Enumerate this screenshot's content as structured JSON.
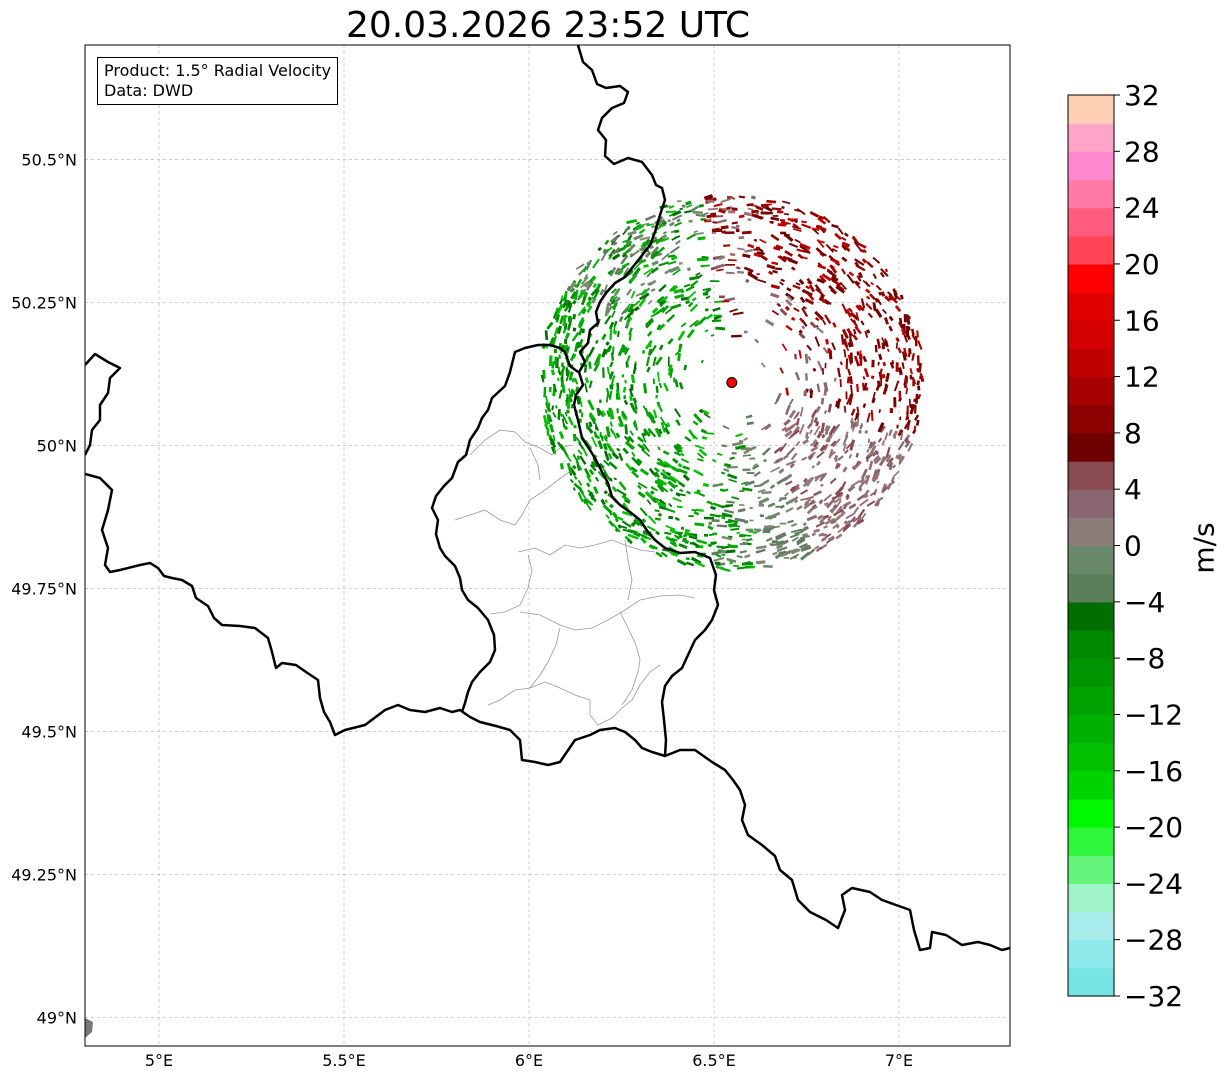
{
  "title": "20.03.2026 23:52 UTC",
  "info": {
    "product": "Product: 1.5° Radial Velocity",
    "source": "Data: DWD"
  },
  "map": {
    "lon_range": [
      4.8,
      7.3
    ],
    "lat_range": [
      48.95,
      50.7
    ],
    "lon_ticks": [
      {
        "value": 5.0,
        "label": "5°E"
      },
      {
        "value": 5.5,
        "label": "5.5°E"
      },
      {
        "value": 6.0,
        "label": "6°E"
      },
      {
        "value": 6.5,
        "label": "6.5°E"
      },
      {
        "value": 7.0,
        "label": "7°E"
      }
    ],
    "lat_ticks": [
      {
        "value": 49.0,
        "label": "49°N"
      },
      {
        "value": 49.25,
        "label": "49.25°N"
      },
      {
        "value": 49.5,
        "label": "49.5°N"
      },
      {
        "value": 49.75,
        "label": "49.75°N"
      },
      {
        "value": 50.0,
        "label": "50°N"
      },
      {
        "value": 50.25,
        "label": "50.25°N"
      },
      {
        "value": 50.5,
        "label": "50.5°N"
      }
    ],
    "radar_site": {
      "lon": 6.548,
      "lat": 50.11,
      "color": "#ff0000"
    },
    "radar_range_deg_lon": 0.52,
    "border_color": "#000000",
    "admin_color": "#999999"
  },
  "colorbar": {
    "label": "m/s",
    "min": -32,
    "max": 32,
    "ticks": [
      {
        "value": 32,
        "label": "32"
      },
      {
        "value": 28,
        "label": "28"
      },
      {
        "value": 24,
        "label": "24"
      },
      {
        "value": 20,
        "label": "20"
      },
      {
        "value": 16,
        "label": "16"
      },
      {
        "value": 12,
        "label": "12"
      },
      {
        "value": 8,
        "label": "8"
      },
      {
        "value": 4,
        "label": "4"
      },
      {
        "value": 0,
        "label": "0"
      },
      {
        "value": -4,
        "label": "−4"
      },
      {
        "value": -8,
        "label": "−8"
      },
      {
        "value": -12,
        "label": "−12"
      },
      {
        "value": -16,
        "label": "−16"
      },
      {
        "value": -20,
        "label": "−20"
      },
      {
        "value": -24,
        "label": "−24"
      },
      {
        "value": -28,
        "label": "−28"
      },
      {
        "value": -32,
        "label": "−32"
      }
    ],
    "colors": [
      "#77e4e4",
      "#8ee9ea",
      "#a7ebea",
      "#9ff3c6",
      "#65f57c",
      "#2ef63b",
      "#00f800",
      "#00d400",
      "#00c000",
      "#00b000",
      "#00a200",
      "#009400",
      "#008800",
      "#006f00",
      "#5b7f58",
      "#6a886a",
      "#8b7c79",
      "#8a6671",
      "#8a4a51",
      "#6e0000",
      "#8c0000",
      "#a60000",
      "#c00000",
      "#d40000",
      "#e00000",
      "#ff0000",
      "#ff4455",
      "#ff5c80",
      "#ff7aa4",
      "#ff88d0",
      "#ffa5c8",
      "#ffcfb4"
    ]
  }
}
